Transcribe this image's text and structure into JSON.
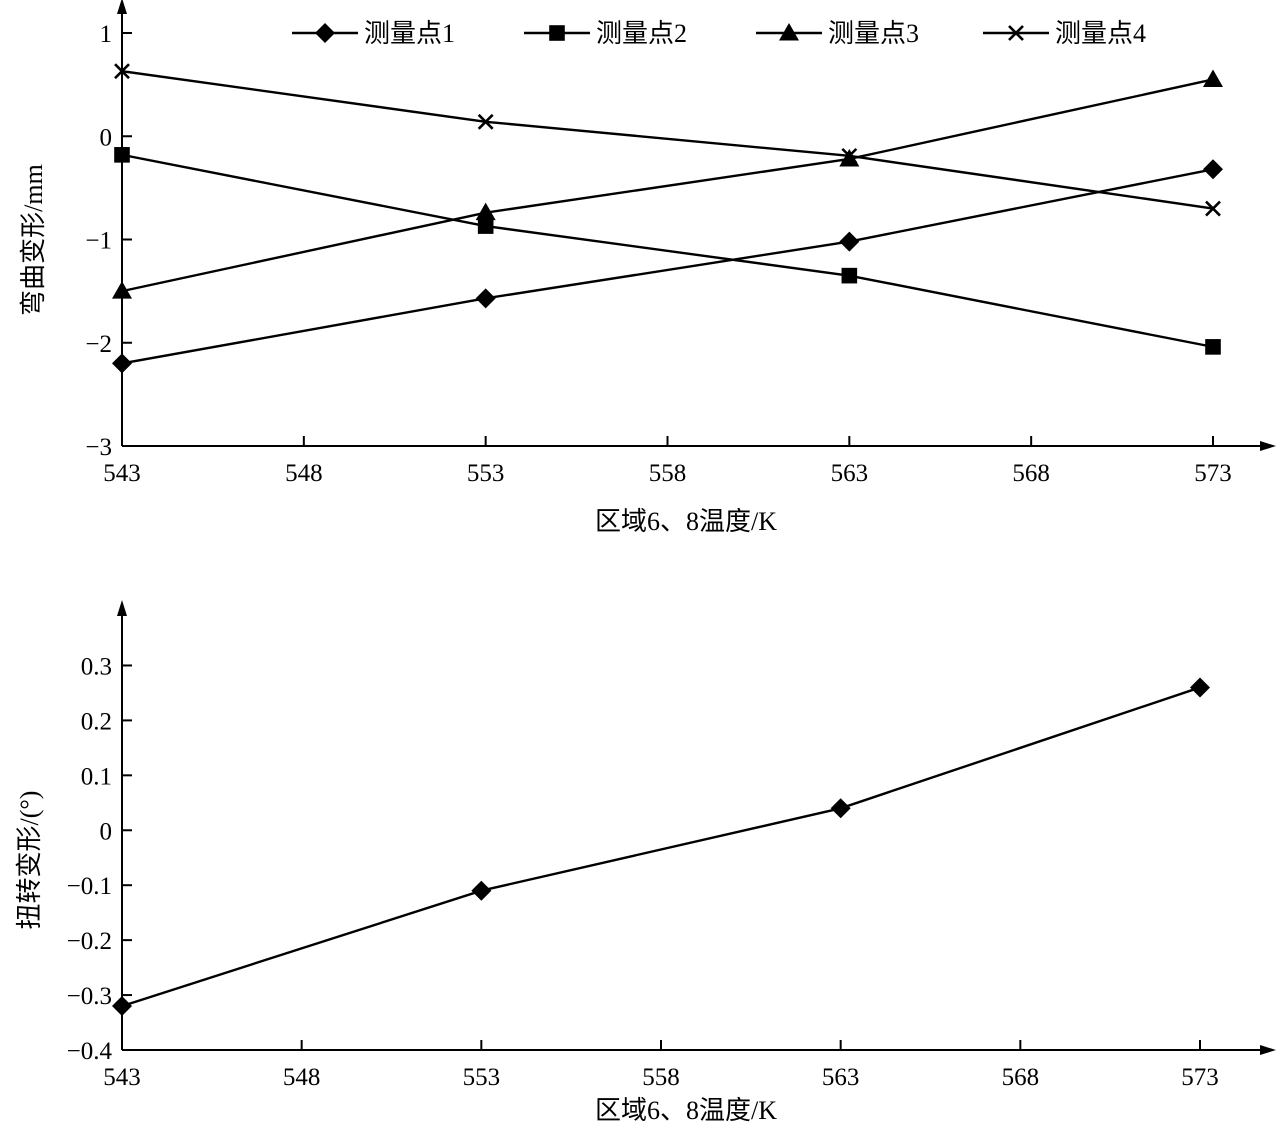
{
  "colors": {
    "ink": "#000000",
    "background": "#ffffff"
  },
  "chart_data": [
    {
      "type": "line",
      "title": "",
      "xlabel": "区域6、8温度/K",
      "ylabel": "弯曲变形/mm",
      "xlim": [
        543,
        573
      ],
      "ylim": [
        -3,
        1
      ],
      "xticks": [
        543,
        548,
        553,
        558,
        563,
        568,
        573
      ],
      "xtick_labels": [
        "543",
        "548",
        "553",
        "558",
        "563",
        "568",
        "573"
      ],
      "yticks": [
        -3,
        -2,
        -1,
        0,
        1
      ],
      "ytick_labels": [
        "−3",
        "−2",
        "−1",
        "0",
        "1"
      ],
      "grid": false,
      "legend": "top",
      "x": [
        543,
        553,
        563,
        573
      ],
      "series": [
        {
          "name": "测量点1",
          "marker": "diamond",
          "values": [
            -2.2,
            -1.57,
            -1.02,
            -0.32
          ]
        },
        {
          "name": "测量点2",
          "marker": "square",
          "values": [
            -0.18,
            -0.87,
            -1.35,
            -2.04
          ]
        },
        {
          "name": "测量点3",
          "marker": "triangle",
          "values": [
            -1.5,
            -0.74,
            -0.22,
            0.55
          ]
        },
        {
          "name": "测量点4",
          "marker": "x",
          "values": [
            0.63,
            0.14,
            -0.19,
            -0.7
          ]
        }
      ]
    },
    {
      "type": "line",
      "title": "",
      "xlabel": "区域6、8温度/K",
      "ylabel": "扭转变形/(°)",
      "xlim": [
        543,
        573
      ],
      "ylim": [
        -0.4,
        0.35
      ],
      "xticks": [
        543,
        548,
        553,
        558,
        563,
        568,
        573
      ],
      "xtick_labels": [
        "543",
        "548",
        "553",
        "558",
        "563",
        "568",
        "573"
      ],
      "yticks": [
        -0.4,
        -0.3,
        -0.2,
        -0.1,
        0,
        0.1,
        0.2,
        0.3
      ],
      "ytick_labels": [
        "−0.4",
        "−0.3",
        "−0.2",
        "−0.1",
        "0",
        "0.1",
        "0.2",
        "0.3"
      ],
      "grid": false,
      "legend": "none",
      "x": [
        543,
        553,
        563,
        573
      ],
      "series": [
        {
          "name": "",
          "marker": "diamond",
          "values": [
            -0.32,
            -0.11,
            0.04,
            0.26
          ]
        }
      ]
    }
  ]
}
